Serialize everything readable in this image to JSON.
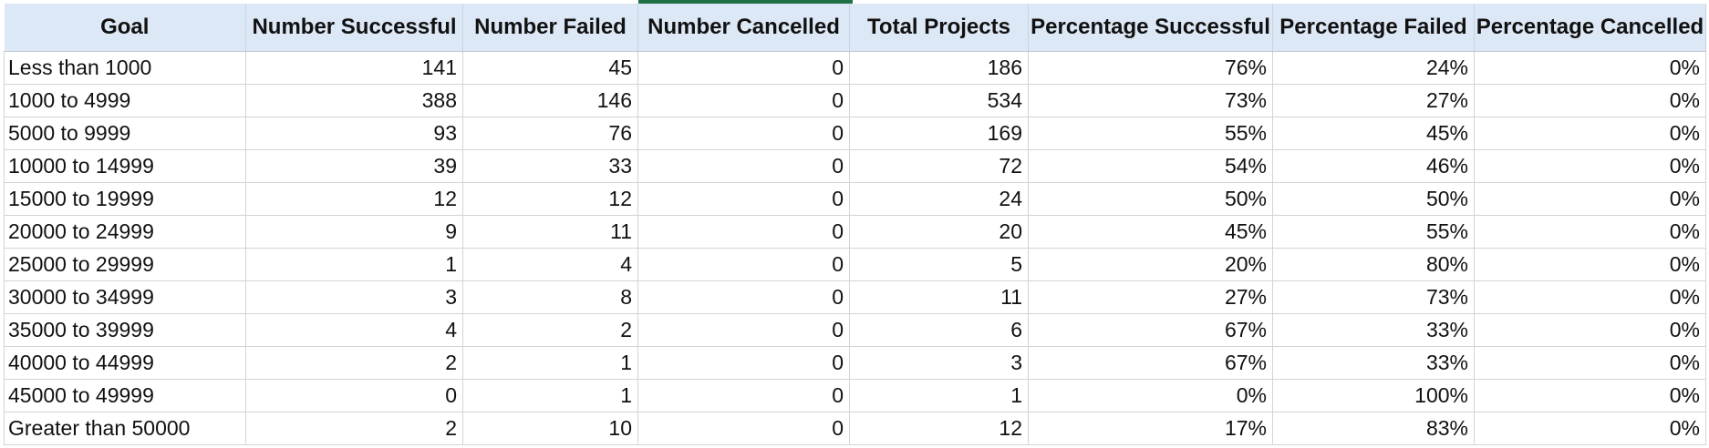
{
  "sheet": {
    "accent_color": "#1e7145",
    "header_bg": "#dde8f6",
    "columns": [
      "Goal",
      "Number Successful",
      "Number Failed",
      "Number Cancelled",
      "Total Projects",
      "Percentage Successful",
      "Percentage Failed",
      "Percentage Cancelled"
    ],
    "rows": [
      [
        "Less than 1000",
        "141",
        "45",
        "0",
        "186",
        "76%",
        "24%",
        "0%"
      ],
      [
        "1000 to 4999",
        "388",
        "146",
        "0",
        "534",
        "73%",
        "27%",
        "0%"
      ],
      [
        "5000 to 9999",
        "93",
        "76",
        "0",
        "169",
        "55%",
        "45%",
        "0%"
      ],
      [
        "10000 to 14999",
        "39",
        "33",
        "0",
        "72",
        "54%",
        "46%",
        "0%"
      ],
      [
        "15000 to 19999",
        "12",
        "12",
        "0",
        "24",
        "50%",
        "50%",
        "0%"
      ],
      [
        "20000 to 24999",
        "9",
        "11",
        "0",
        "20",
        "45%",
        "55%",
        "0%"
      ],
      [
        "25000 to 29999",
        "1",
        "4",
        "0",
        "5",
        "20%",
        "80%",
        "0%"
      ],
      [
        "30000 to 34999",
        "3",
        "8",
        "0",
        "11",
        "27%",
        "73%",
        "0%"
      ],
      [
        "35000 to 39999",
        "4",
        "2",
        "0",
        "6",
        "67%",
        "33%",
        "0%"
      ],
      [
        "40000 to 44999",
        "2",
        "1",
        "0",
        "3",
        "67%",
        "33%",
        "0%"
      ],
      [
        "45000 to 49999",
        "0",
        "1",
        "0",
        "1",
        "0%",
        "100%",
        "0%"
      ],
      [
        "Greater than 50000",
        "2",
        "10",
        "0",
        "12",
        "17%",
        "83%",
        "0%"
      ]
    ]
  }
}
